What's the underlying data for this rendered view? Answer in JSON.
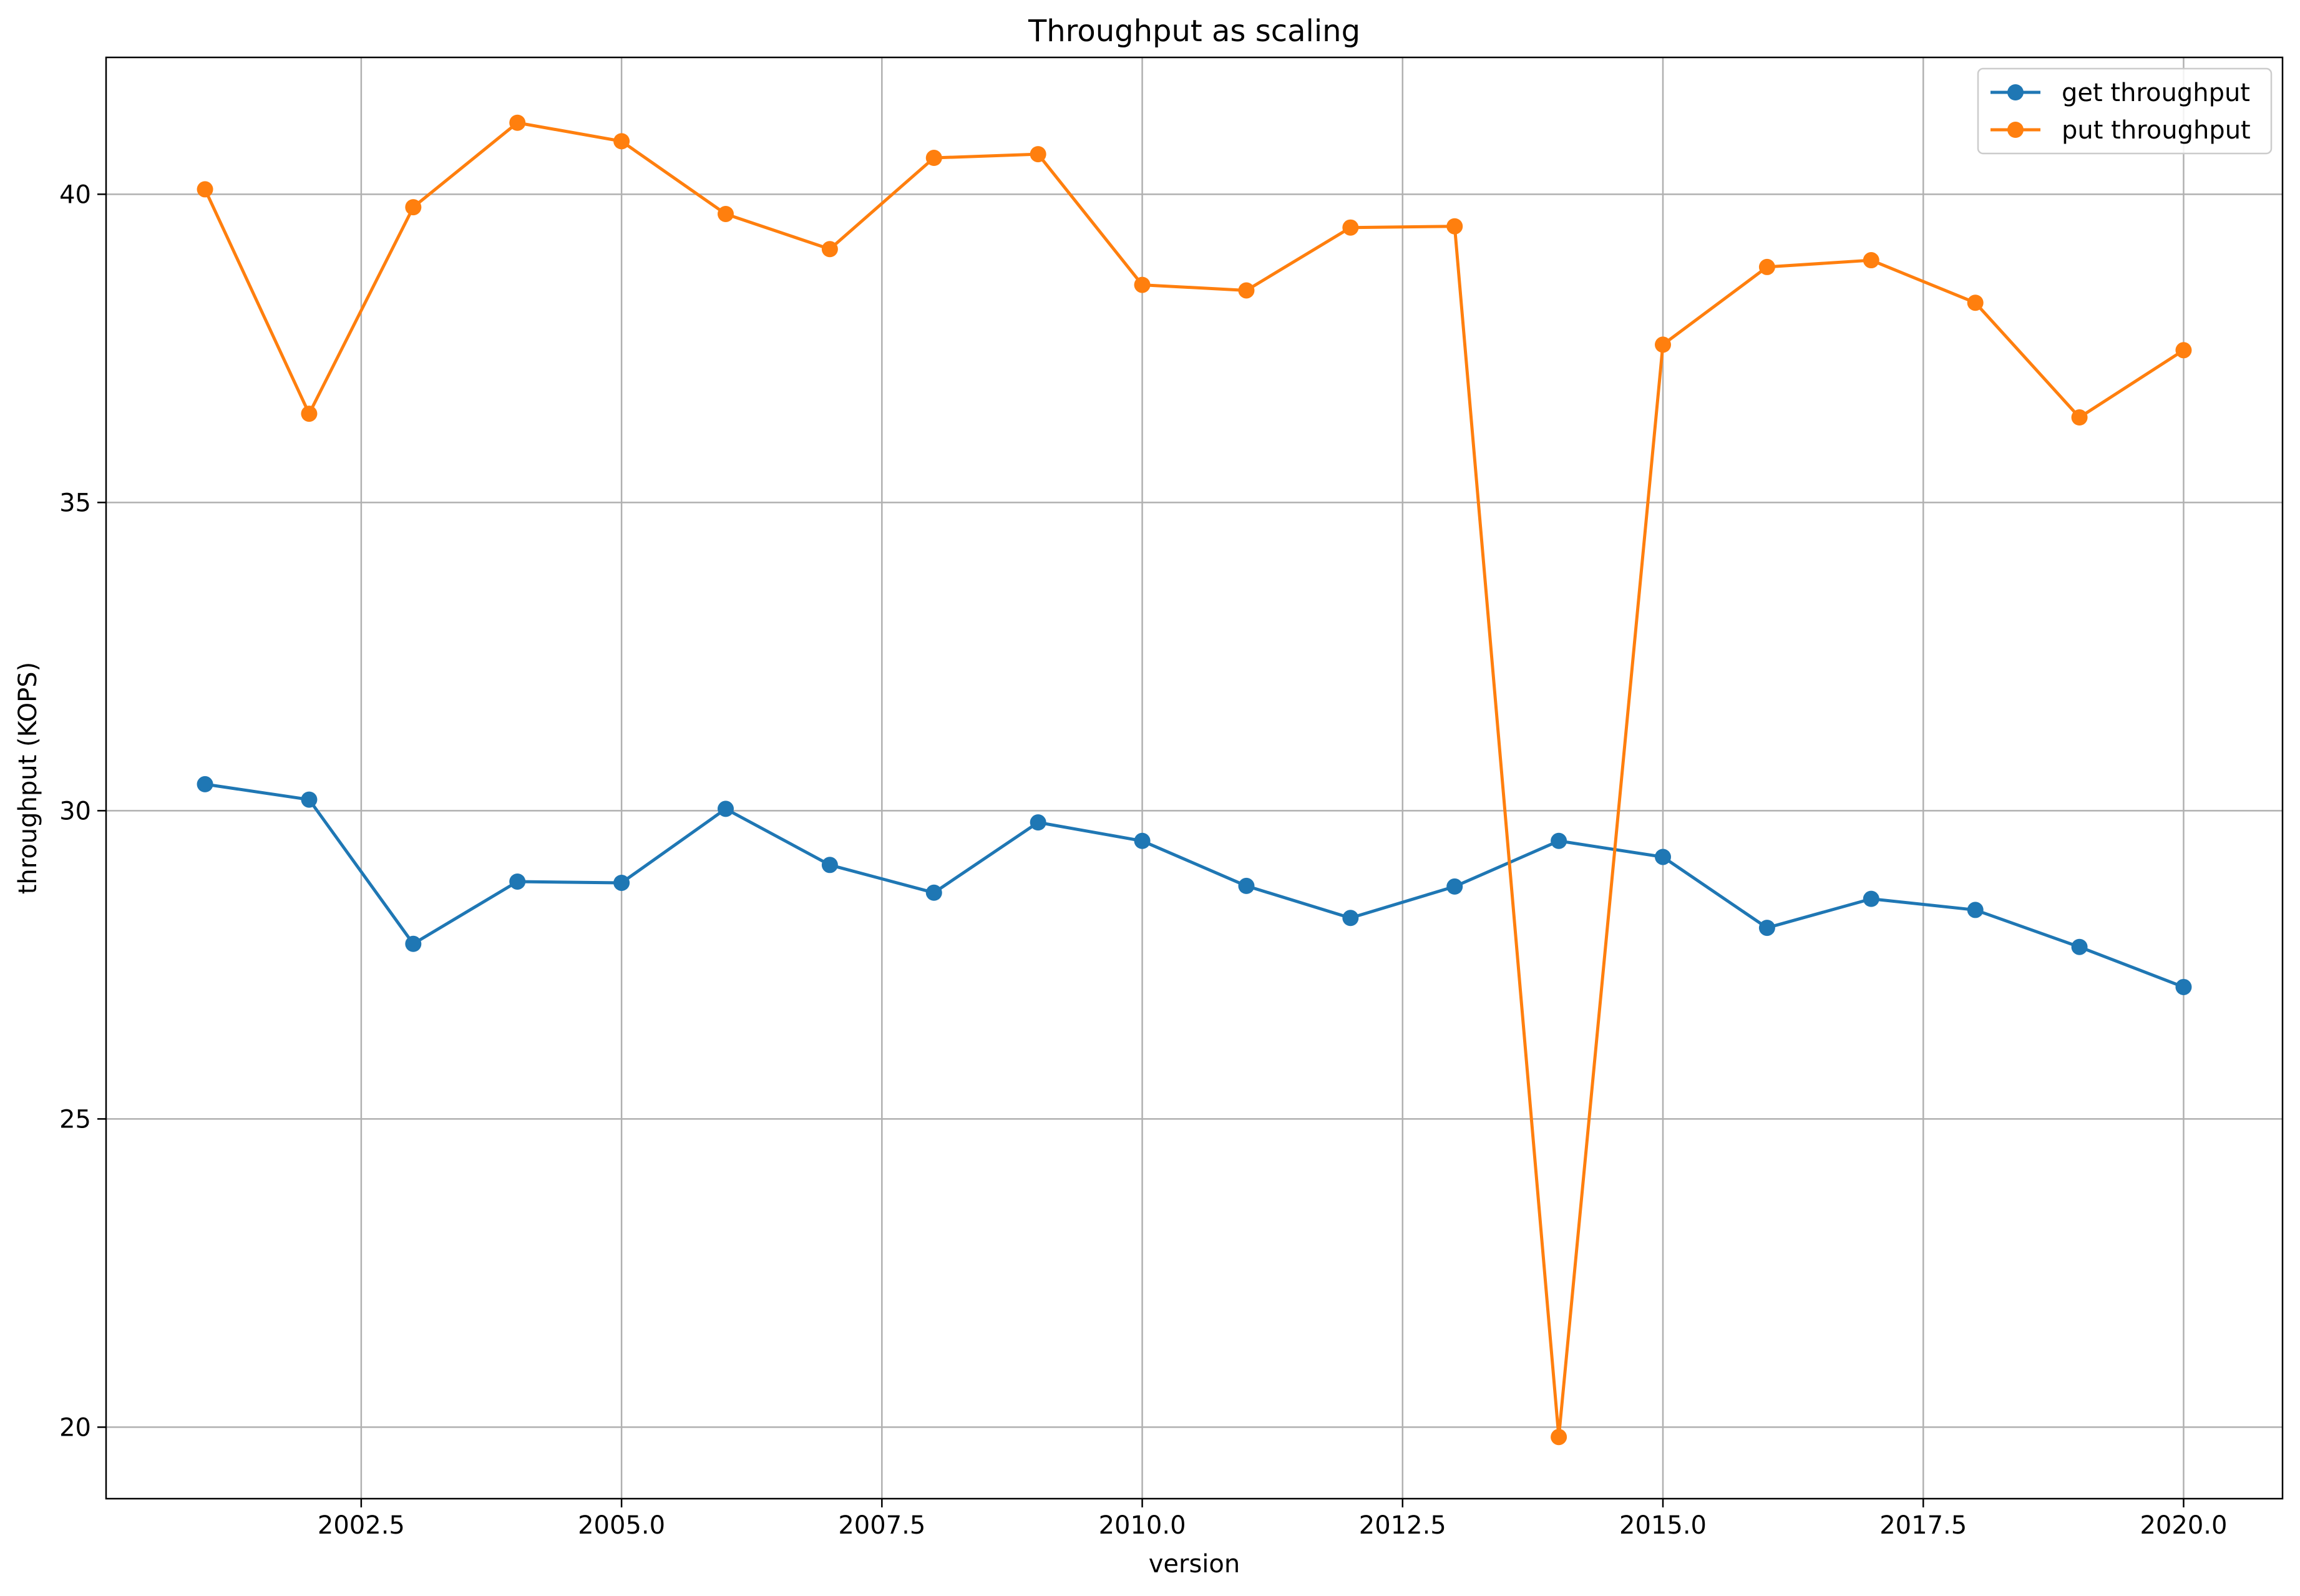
{
  "chart_data": {
    "type": "line",
    "title": "Throughput as scaling",
    "xlabel": "version",
    "ylabel": "throughput (KOPS)",
    "xlim": [
      2000.05,
      2020.95
    ],
    "ylim": [
      18.84,
      42.22
    ],
    "xticks": [
      2002.5,
      2005.0,
      2007.5,
      2010.0,
      2012.5,
      2015.0,
      2017.5,
      2020.0
    ],
    "xtick_labels": [
      "2002.5",
      "2005.0",
      "2007.5",
      "2010.0",
      "2012.5",
      "2015.0",
      "2017.5",
      "2020.0"
    ],
    "yticks": [
      20,
      25,
      30,
      35,
      40
    ],
    "ytick_labels": [
      "20",
      "25",
      "30",
      "35",
      "40"
    ],
    "grid": true,
    "legend_position": "top-right",
    "x": [
      2001,
      2002,
      2003,
      2004,
      2005,
      2006,
      2007,
      2008,
      2009,
      2010,
      2011,
      2012,
      2013,
      2014,
      2015,
      2016,
      2017,
      2018,
      2019,
      2020
    ],
    "series": [
      {
        "name": "get throughput",
        "color": "#1f77b4",
        "marker": "circle",
        "values": [
          30.43,
          30.18,
          27.84,
          28.85,
          28.83,
          30.03,
          29.12,
          28.67,
          29.81,
          29.51,
          28.78,
          28.26,
          28.77,
          29.51,
          29.25,
          28.1,
          28.57,
          28.39,
          27.79,
          27.14
        ]
      },
      {
        "name": "put throughput",
        "color": "#ff7f0e",
        "marker": "circle",
        "values": [
          40.08,
          36.44,
          39.79,
          41.16,
          40.86,
          39.68,
          39.11,
          40.59,
          40.65,
          38.53,
          38.44,
          39.46,
          39.48,
          19.84,
          37.56,
          38.82,
          38.93,
          38.24,
          36.38,
          37.47
        ]
      }
    ]
  }
}
